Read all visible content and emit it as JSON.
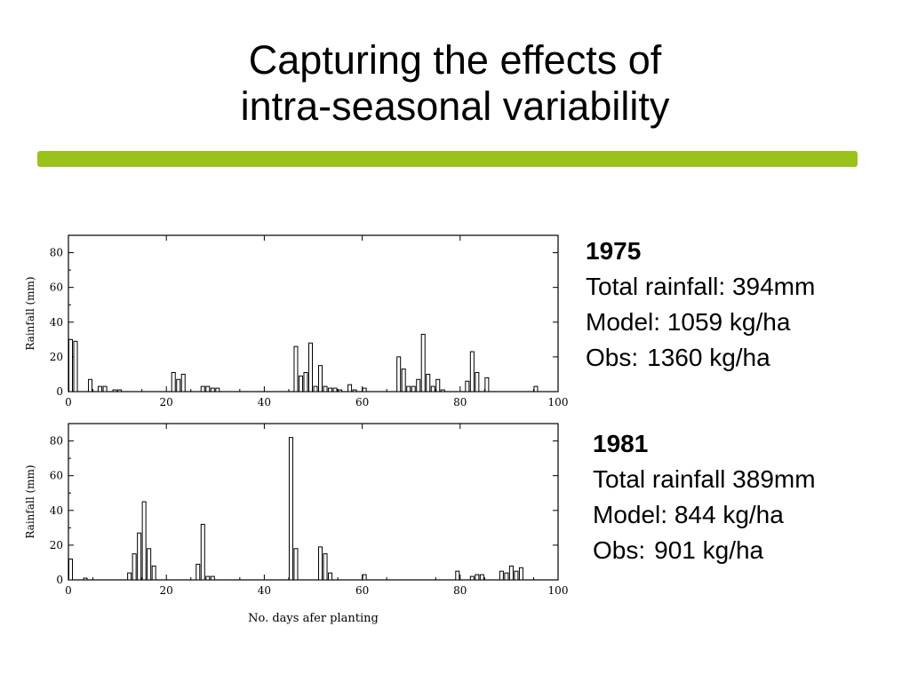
{
  "slide": {
    "title_line1": "Capturing the effects of",
    "title_line2": "intra-seasonal variability",
    "accent_color": "#99c31a"
  },
  "panels": [
    {
      "year": "1975",
      "total": "Total rainfall: 394mm",
      "model": "Model: 1059 kg/ha",
      "obs_label": "Obs:",
      "obs_value": "1360 kg/ha"
    },
    {
      "year": "1981",
      "total": "Total rainfall 389mm",
      "model": "Model: 844 kg/ha",
      "obs_label": "Obs:",
      "obs_value": "901 kg/ha"
    }
  ],
  "chart_data": [
    {
      "type": "bar",
      "ylabel": "Rainfall (mm)",
      "xlabel": "",
      "xlim": [
        0,
        100
      ],
      "ylim": [
        0,
        90
      ],
      "xticks": [
        0,
        20,
        40,
        60,
        80,
        100
      ],
      "yticks": [
        0,
        20,
        40,
        60,
        80
      ],
      "x": [
        0,
        1,
        4,
        6,
        7,
        9,
        10,
        21,
        22,
        23,
        27,
        28,
        29,
        30,
        46,
        47,
        48,
        49,
        50,
        51,
        52,
        53,
        54,
        55,
        57,
        58,
        60,
        67,
        68,
        69,
        70,
        71,
        72,
        73,
        74,
        75,
        76,
        81,
        82,
        83,
        85,
        95
      ],
      "values": [
        30,
        29,
        7,
        3,
        3,
        1,
        1,
        11,
        7,
        10,
        3,
        3,
        2,
        2,
        26,
        9,
        11,
        28,
        3,
        15,
        3,
        2,
        2,
        1,
        4,
        1,
        2,
        20,
        13,
        3,
        3,
        7,
        33,
        10,
        3,
        7,
        1,
        6,
        23,
        11,
        8,
        3
      ]
    },
    {
      "type": "bar",
      "ylabel": "Rainfall (mm)",
      "xlabel": "No. days afer planting",
      "xlim": [
        0,
        100
      ],
      "ylim": [
        0,
        90
      ],
      "xticks": [
        0,
        20,
        40,
        60,
        80,
        100
      ],
      "yticks": [
        0,
        20,
        40,
        60,
        80
      ],
      "x": [
        0,
        3,
        12,
        13,
        14,
        15,
        16,
        17,
        26,
        27,
        28,
        29,
        45,
        46,
        51,
        52,
        53,
        60,
        79,
        82,
        83,
        84,
        88,
        89,
        90,
        91,
        92
      ],
      "values": [
        12,
        1,
        4,
        15,
        27,
        45,
        18,
        8,
        9,
        32,
        2,
        2,
        82,
        18,
        19,
        15,
        4,
        3,
        5,
        2,
        3,
        3,
        5,
        4,
        8,
        5,
        7
      ]
    }
  ]
}
